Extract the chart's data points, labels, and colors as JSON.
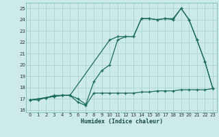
{
  "title": "",
  "xlabel": "Humidex (Indice chaleur)",
  "bg_color": "#cceae8",
  "grid_color": "#aad4d0",
  "line_color": "#1a6b5a",
  "xlim": [
    -0.5,
    23.5
  ],
  "ylim": [
    15.8,
    25.5
  ],
  "xticks": [
    0,
    1,
    2,
    3,
    4,
    5,
    6,
    7,
    8,
    9,
    10,
    11,
    12,
    13,
    14,
    15,
    16,
    17,
    18,
    19,
    20,
    21,
    22,
    23
  ],
  "yticks": [
    16,
    17,
    18,
    19,
    20,
    21,
    22,
    23,
    24,
    25
  ],
  "line1_x": [
    0,
    1,
    2,
    3,
    4,
    5,
    6,
    7,
    8,
    9,
    10,
    11,
    12,
    13,
    14,
    15,
    16,
    17,
    18,
    19,
    20,
    21,
    22,
    23
  ],
  "line1_y": [
    16.9,
    16.9,
    17.1,
    17.3,
    17.3,
    17.3,
    16.7,
    16.4,
    17.5,
    17.5,
    17.5,
    17.5,
    17.5,
    17.5,
    17.6,
    17.6,
    17.7,
    17.7,
    17.7,
    17.8,
    17.8,
    17.8,
    17.8,
    17.9
  ],
  "line2_x": [
    0,
    2,
    3,
    4,
    5,
    10,
    11,
    12,
    13,
    14,
    15,
    16,
    17,
    18,
    19,
    20,
    21,
    22,
    23
  ],
  "line2_y": [
    16.9,
    17.1,
    17.2,
    17.3,
    17.3,
    22.2,
    22.5,
    22.5,
    22.5,
    24.1,
    24.1,
    24.0,
    24.1,
    24.1,
    25.0,
    24.0,
    22.2,
    20.3,
    17.9
  ],
  "line3_x": [
    0,
    2,
    3,
    4,
    5,
    6,
    7,
    8,
    9,
    10,
    11,
    12,
    13,
    14,
    15,
    16,
    17,
    18,
    19,
    20,
    21,
    22,
    23
  ],
  "line3_y": [
    16.9,
    17.1,
    17.2,
    17.3,
    17.3,
    17.0,
    16.5,
    18.5,
    19.5,
    20.0,
    22.2,
    22.5,
    22.5,
    24.1,
    24.1,
    24.0,
    24.1,
    24.0,
    25.0,
    24.0,
    22.2,
    20.3,
    17.9
  ]
}
